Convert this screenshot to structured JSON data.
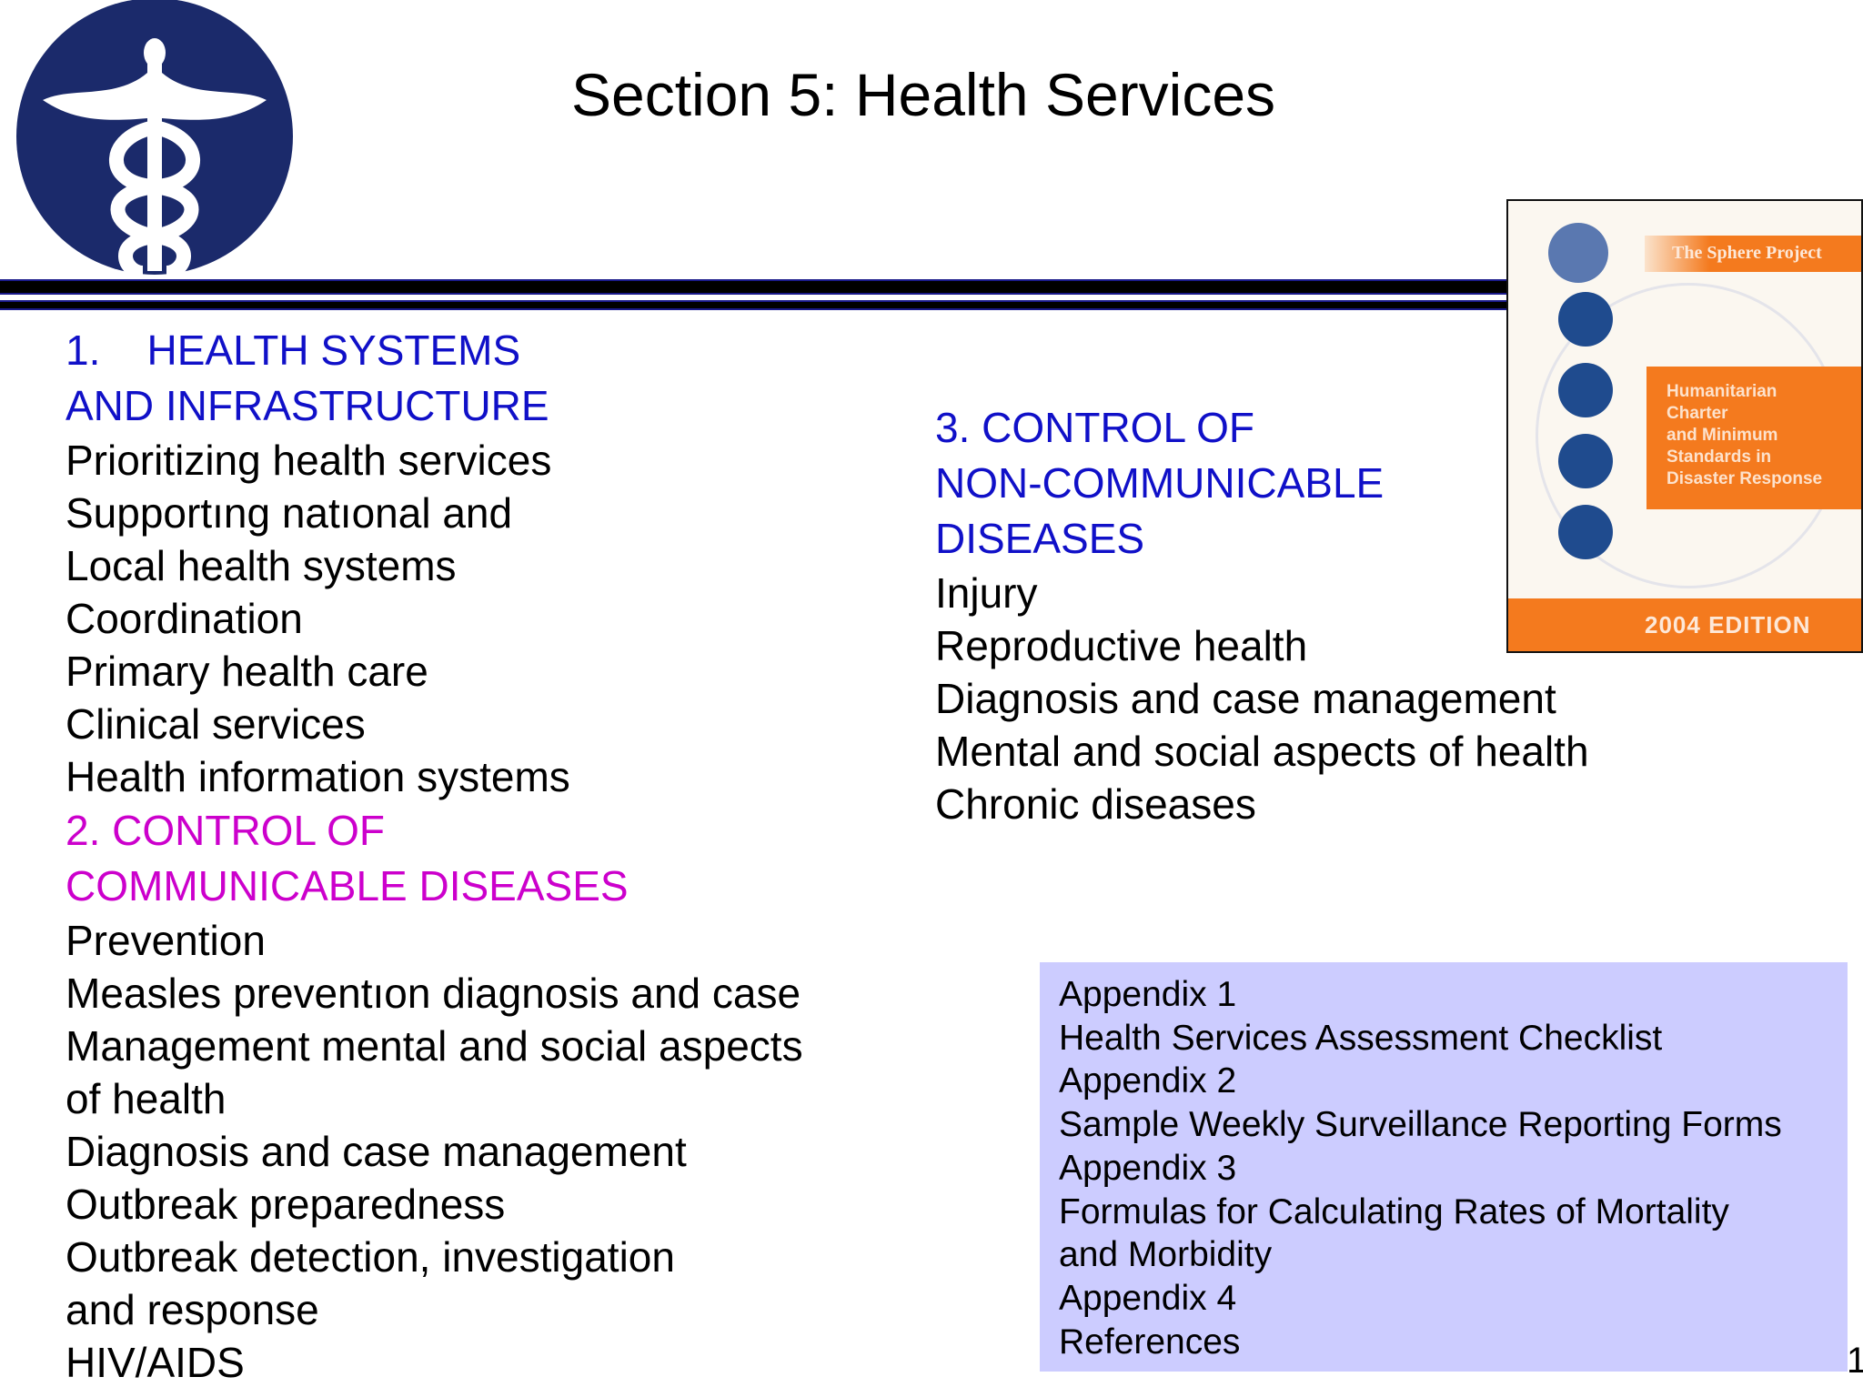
{
  "title": "Section 5: Health Services",
  "left_column": {
    "section1_heading": [
      "1.    HEALTH SYSTEMS",
      "AND INFRASTRUCTURE"
    ],
    "section1_items": [
      "Prioritizing health services",
      "Supportıng natıonal and",
      "Local health systems",
      "Coordination",
      "Primary health care",
      "Clinical services",
      "Health information systems"
    ],
    "section2_heading": [
      "2. CONTROL OF",
      "COMMUNICABLE DISEASES"
    ],
    "section2_items": [
      "Prevention",
      "Measles preventıon diagnosis and case",
      "Management mental and social aspects",
      "of health",
      "Diagnosis and case management",
      "Outbreak preparedness",
      "Outbreak detection, investigation",
      "and response",
      "HIV/AIDS"
    ]
  },
  "right_column": {
    "section3_heading": [
      "3. CONTROL OF",
      "NON-COMMUNICABLE",
      "DISEASES"
    ],
    "section3_items": [
      "Injury",
      "Reproductive health",
      "Diagnosis and case management",
      "Mental and social aspects of health",
      "Chronic diseases"
    ]
  },
  "appendix": [
    "Appendix 1",
    "Health Services Assessment Checklist",
    "Appendix 2",
    "Sample Weekly Surveillance Reporting Forms",
    "Appendix 3",
    "Formulas for Calculating Rates of Mortality",
    "and Morbidity",
    "Appendix 4",
    "References"
  ],
  "page_number": "1",
  "book_cover": {
    "publisher": "The Sphere Project",
    "title_lines": [
      "Humanitarian",
      "Charter",
      "and Minimum",
      "Standards in",
      "Disaster Response"
    ],
    "edition": "2004 EDITION"
  },
  "colors": {
    "heading_blue": "#1010c8",
    "heading_magenta": "#cc00cc",
    "appendix_bg": "#ccccff",
    "logo_navy": "#1b2a6b",
    "cover_orange": "#f47a1e"
  }
}
